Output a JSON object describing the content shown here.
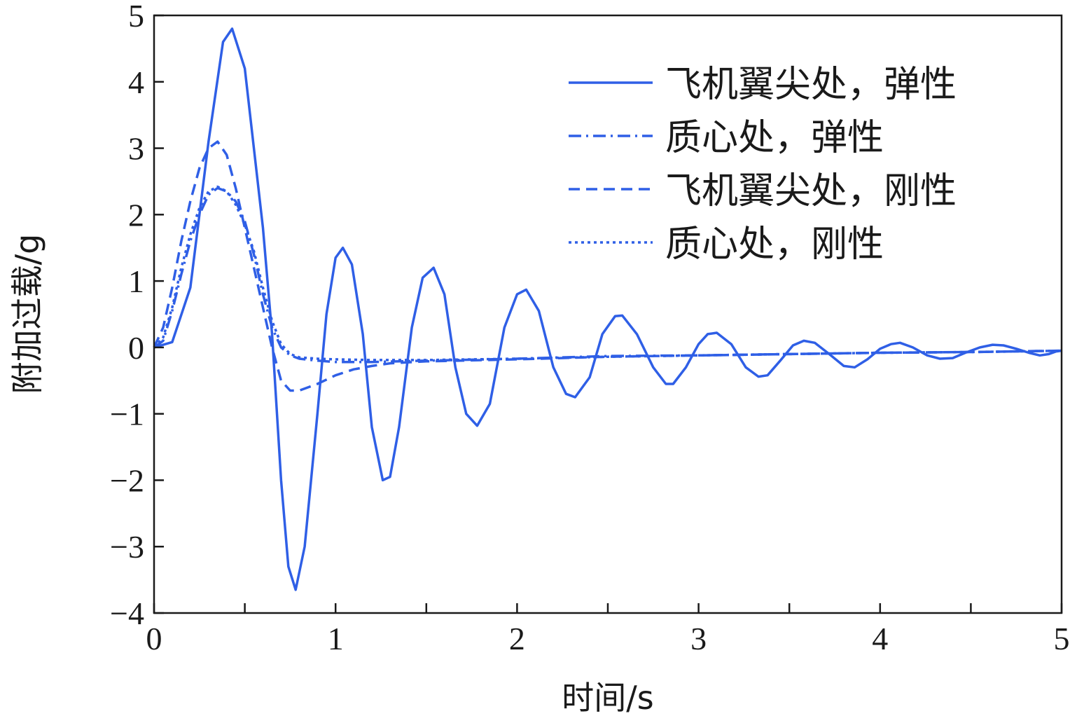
{
  "chart_data": {
    "type": "line",
    "xlabel": "时间/s",
    "ylabel": "附加过载/g",
    "xlim": [
      0,
      5
    ],
    "ylim": [
      -4,
      5
    ],
    "xticks": [
      0,
      1,
      2,
      3,
      4,
      5
    ],
    "yticks": [
      -4,
      -3,
      -2,
      -1,
      0,
      1,
      2,
      3,
      4,
      5
    ],
    "xtick_labels": [
      "0",
      "1",
      "2",
      "3",
      "4",
      "5"
    ],
    "ytick_labels": [
      "−4",
      "−3",
      "−2",
      "−1",
      "0",
      "1",
      "2",
      "3",
      "4",
      "5"
    ],
    "grid": false,
    "legend_position": "top-right",
    "line_color": "#2f5fe6",
    "series": [
      {
        "name": "飞机翼尖处，弹性",
        "dash": "solid",
        "points": [
          [
            0,
            0
          ],
          [
            0.1,
            0.08
          ],
          [
            0.2,
            0.9
          ],
          [
            0.3,
            3.1
          ],
          [
            0.38,
            4.6
          ],
          [
            0.43,
            4.8
          ],
          [
            0.5,
            4.2
          ],
          [
            0.6,
            1.8
          ],
          [
            0.65,
            0.2
          ],
          [
            0.7,
            -2.0
          ],
          [
            0.74,
            -3.3
          ],
          [
            0.78,
            -3.65
          ],
          [
            0.83,
            -3.0
          ],
          [
            0.9,
            -1.0
          ],
          [
            0.95,
            0.5
          ],
          [
            1.0,
            1.35
          ],
          [
            1.04,
            1.5
          ],
          [
            1.09,
            1.25
          ],
          [
            1.15,
            0.2
          ],
          [
            1.2,
            -1.2
          ],
          [
            1.26,
            -2.0
          ],
          [
            1.3,
            -1.95
          ],
          [
            1.35,
            -1.2
          ],
          [
            1.42,
            0.3
          ],
          [
            1.48,
            1.05
          ],
          [
            1.54,
            1.2
          ],
          [
            1.6,
            0.8
          ],
          [
            1.66,
            -0.3
          ],
          [
            1.72,
            -1.0
          ],
          [
            1.78,
            -1.18
          ],
          [
            1.85,
            -0.85
          ],
          [
            1.93,
            0.3
          ],
          [
            2.0,
            0.8
          ],
          [
            2.05,
            0.87
          ],
          [
            2.12,
            0.55
          ],
          [
            2.2,
            -0.3
          ],
          [
            2.27,
            -0.7
          ],
          [
            2.32,
            -0.75
          ],
          [
            2.4,
            -0.45
          ],
          [
            2.47,
            0.2
          ],
          [
            2.54,
            0.47
          ],
          [
            2.58,
            0.48
          ],
          [
            2.66,
            0.2
          ],
          [
            2.75,
            -0.3
          ],
          [
            2.82,
            -0.55
          ],
          [
            2.86,
            -0.55
          ],
          [
            2.93,
            -0.3
          ],
          [
            3.0,
            0.05
          ],
          [
            3.05,
            0.2
          ],
          [
            3.1,
            0.22
          ],
          [
            3.18,
            0.05
          ],
          [
            3.26,
            -0.3
          ],
          [
            3.33,
            -0.44
          ],
          [
            3.38,
            -0.42
          ],
          [
            3.45,
            -0.2
          ],
          [
            3.52,
            0.03
          ],
          [
            3.58,
            0.1
          ],
          [
            3.64,
            0.07
          ],
          [
            3.72,
            -0.1
          ],
          [
            3.8,
            -0.28
          ],
          [
            3.86,
            -0.3
          ],
          [
            3.93,
            -0.18
          ],
          [
            4.0,
            -0.02
          ],
          [
            4.06,
            0.05
          ],
          [
            4.11,
            0.07
          ],
          [
            4.18,
            0.0
          ],
          [
            4.26,
            -0.12
          ],
          [
            4.33,
            -0.17
          ],
          [
            4.4,
            -0.16
          ],
          [
            4.47,
            -0.08
          ],
          [
            4.55,
            0.0
          ],
          [
            4.62,
            0.04
          ],
          [
            4.68,
            0.03
          ],
          [
            4.75,
            -0.02
          ],
          [
            4.82,
            -0.08
          ],
          [
            4.88,
            -0.12
          ],
          [
            4.93,
            -0.1
          ],
          [
            4.97,
            -0.06
          ],
          [
            5.0,
            -0.05
          ]
        ]
      },
      {
        "name": "质心处，弹性",
        "dash": "dashdot",
        "points": [
          [
            0,
            0
          ],
          [
            0.05,
            0.1
          ],
          [
            0.1,
            0.55
          ],
          [
            0.15,
            1.1
          ],
          [
            0.2,
            1.6
          ],
          [
            0.25,
            2.0
          ],
          [
            0.3,
            2.3
          ],
          [
            0.35,
            2.4
          ],
          [
            0.4,
            2.35
          ],
          [
            0.45,
            2.2
          ],
          [
            0.5,
            1.9
          ],
          [
            0.55,
            1.4
          ],
          [
            0.6,
            0.8
          ],
          [
            0.65,
            0.3
          ],
          [
            0.7,
            0.0
          ],
          [
            0.75,
            -0.12
          ],
          [
            0.8,
            -0.17
          ],
          [
            0.9,
            -0.2
          ],
          [
            1.0,
            -0.22
          ],
          [
            1.2,
            -0.22
          ],
          [
            1.5,
            -0.2
          ],
          [
            2.0,
            -0.17
          ],
          [
            2.5,
            -0.13
          ],
          [
            3.0,
            -0.12
          ],
          [
            3.5,
            -0.1
          ],
          [
            4.0,
            -0.08
          ],
          [
            4.5,
            -0.07
          ],
          [
            5.0,
            -0.05
          ]
        ]
      },
      {
        "name": "飞机翼尖处，刚性",
        "dash": "dashed",
        "points": [
          [
            0,
            0
          ],
          [
            0.05,
            0.3
          ],
          [
            0.1,
            0.9
          ],
          [
            0.15,
            1.6
          ],
          [
            0.2,
            2.2
          ],
          [
            0.25,
            2.7
          ],
          [
            0.3,
            3.0
          ],
          [
            0.35,
            3.1
          ],
          [
            0.4,
            2.9
          ],
          [
            0.45,
            2.4
          ],
          [
            0.5,
            1.8
          ],
          [
            0.55,
            1.2
          ],
          [
            0.6,
            0.6
          ],
          [
            0.65,
            0.0
          ],
          [
            0.7,
            -0.5
          ],
          [
            0.75,
            -0.65
          ],
          [
            0.8,
            -0.65
          ],
          [
            0.9,
            -0.55
          ],
          [
            1.0,
            -0.42
          ],
          [
            1.1,
            -0.33
          ],
          [
            1.2,
            -0.28
          ],
          [
            1.3,
            -0.24
          ],
          [
            1.5,
            -0.21
          ],
          [
            2.0,
            -0.18
          ],
          [
            2.5,
            -0.14
          ],
          [
            3.0,
            -0.12
          ],
          [
            3.5,
            -0.1
          ],
          [
            4.0,
            -0.08
          ],
          [
            4.5,
            -0.07
          ],
          [
            5.0,
            -0.05
          ]
        ]
      },
      {
        "name": "质心处，刚性",
        "dash": "dotted",
        "points": [
          [
            0,
            0
          ],
          [
            0.05,
            0.15
          ],
          [
            0.1,
            0.6
          ],
          [
            0.15,
            1.2
          ],
          [
            0.2,
            1.7
          ],
          [
            0.25,
            2.1
          ],
          [
            0.3,
            2.35
          ],
          [
            0.35,
            2.42
          ],
          [
            0.4,
            2.35
          ],
          [
            0.45,
            2.15
          ],
          [
            0.5,
            1.85
          ],
          [
            0.55,
            1.45
          ],
          [
            0.6,
            0.9
          ],
          [
            0.65,
            0.4
          ],
          [
            0.7,
            0.05
          ],
          [
            0.75,
            -0.1
          ],
          [
            0.8,
            -0.15
          ],
          [
            0.9,
            -0.17
          ],
          [
            1.0,
            -0.18
          ],
          [
            1.2,
            -0.19
          ],
          [
            1.5,
            -0.19
          ],
          [
            2.0,
            -0.17
          ],
          [
            2.5,
            -0.14
          ],
          [
            3.0,
            -0.12
          ],
          [
            3.5,
            -0.1
          ],
          [
            4.0,
            -0.08
          ],
          [
            4.5,
            -0.07
          ],
          [
            5.0,
            -0.05
          ]
        ]
      }
    ]
  }
}
